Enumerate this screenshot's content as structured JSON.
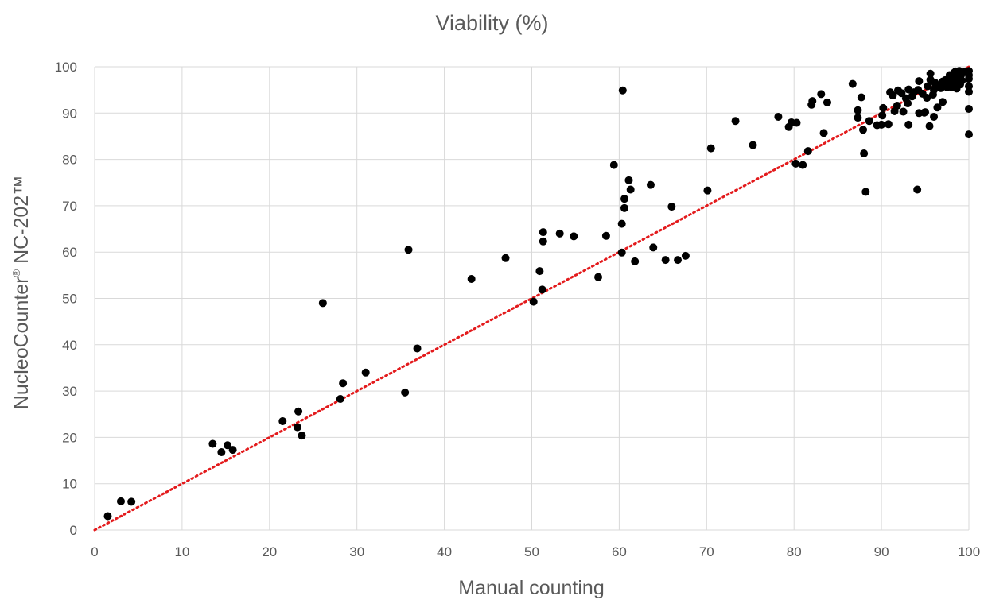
{
  "chart_data": {
    "type": "scatter",
    "title": "Viability (%)",
    "xlabel": "Manual counting",
    "ylabel_main": "NucleoCounter",
    "ylabel_sup": "®",
    "ylabel_rest": " NC-202™",
    "xlim": [
      0,
      100
    ],
    "ylim": [
      0,
      100
    ],
    "x_ticks": [
      0,
      10,
      20,
      30,
      40,
      50,
      60,
      70,
      80,
      90,
      100
    ],
    "y_ticks": [
      0,
      10,
      20,
      30,
      40,
      50,
      60,
      70,
      80,
      90,
      100
    ],
    "grid": true,
    "point_color": "#000000",
    "trendline": {
      "style": "dotted",
      "color": "#e31a1c",
      "from": [
        0,
        0
      ],
      "to": [
        100,
        100
      ]
    },
    "points": [
      [
        1.5,
        3.0
      ],
      [
        3.0,
        6.2
      ],
      [
        4.2,
        6.1
      ],
      [
        13.5,
        18.6
      ],
      [
        14.5,
        16.8
      ],
      [
        15.2,
        18.3
      ],
      [
        15.8,
        17.3
      ],
      [
        21.5,
        23.5
      ],
      [
        23.2,
        22.2
      ],
      [
        23.3,
        25.6
      ],
      [
        23.7,
        20.4
      ],
      [
        26.1,
        49.0
      ],
      [
        28.1,
        28.3
      ],
      [
        28.4,
        31.7
      ],
      [
        31.0,
        34.0
      ],
      [
        35.5,
        29.7
      ],
      [
        35.9,
        60.5
      ],
      [
        36.9,
        39.2
      ],
      [
        43.1,
        54.2
      ],
      [
        47.0,
        58.7
      ],
      [
        50.2,
        49.3
      ],
      [
        50.9,
        55.9
      ],
      [
        51.2,
        51.9
      ],
      [
        51.3,
        64.3
      ],
      [
        51.3,
        62.3
      ],
      [
        53.2,
        64.0
      ],
      [
        54.8,
        63.4
      ],
      [
        57.6,
        54.6
      ],
      [
        58.5,
        63.5
      ],
      [
        59.4,
        78.8
      ],
      [
        60.3,
        66.1
      ],
      [
        60.3,
        59.9
      ],
      [
        60.4,
        94.9
      ],
      [
        60.6,
        71.5
      ],
      [
        60.6,
        69.5
      ],
      [
        61.1,
        75.5
      ],
      [
        61.3,
        73.5
      ],
      [
        61.8,
        58.0
      ],
      [
        63.6,
        74.5
      ],
      [
        63.9,
        61.0
      ],
      [
        65.3,
        58.3
      ],
      [
        66.0,
        69.8
      ],
      [
        66.7,
        58.3
      ],
      [
        67.6,
        59.2
      ],
      [
        70.1,
        73.3
      ],
      [
        70.5,
        82.4
      ],
      [
        73.3,
        88.3
      ],
      [
        75.3,
        83.1
      ],
      [
        78.2,
        89.2
      ],
      [
        79.4,
        87.0
      ],
      [
        79.7,
        88.0
      ],
      [
        80.2,
        79.1
      ],
      [
        80.3,
        87.9
      ],
      [
        81.0,
        78.8
      ],
      [
        81.6,
        81.8
      ],
      [
        82.0,
        91.8
      ],
      [
        82.1,
        92.6
      ],
      [
        83.1,
        94.1
      ],
      [
        83.4,
        85.7
      ],
      [
        83.8,
        92.3
      ],
      [
        86.7,
        96.3
      ],
      [
        87.3,
        90.6
      ],
      [
        87.3,
        89.0
      ],
      [
        87.7,
        93.4
      ],
      [
        87.9,
        86.4
      ],
      [
        88.0,
        81.3
      ],
      [
        88.2,
        73.0
      ],
      [
        88.6,
        88.3
      ],
      [
        89.5,
        87.4
      ],
      [
        90.0,
        87.5
      ],
      [
        90.1,
        89.5
      ],
      [
        90.2,
        91.1
      ],
      [
        90.8,
        87.6
      ],
      [
        91.0,
        94.5
      ],
      [
        91.3,
        93.8
      ],
      [
        91.5,
        90.4
      ],
      [
        91.8,
        91.6
      ],
      [
        91.9,
        94.9
      ],
      [
        92.3,
        94.3
      ],
      [
        92.5,
        90.3
      ],
      [
        92.8,
        93.2
      ],
      [
        93.0,
        92.1
      ],
      [
        93.1,
        95.1
      ],
      [
        93.1,
        87.5
      ],
      [
        93.5,
        93.6
      ],
      [
        93.7,
        94.5
      ],
      [
        94.1,
        73.5
      ],
      [
        94.2,
        95.0
      ],
      [
        94.3,
        90.0
      ],
      [
        94.3,
        96.9
      ],
      [
        94.7,
        94.2
      ],
      [
        94.9,
        90.1
      ],
      [
        95.0,
        90.2
      ],
      [
        95.2,
        93.3
      ],
      [
        95.3,
        95.8
      ],
      [
        95.5,
        87.2
      ],
      [
        95.6,
        97.2
      ],
      [
        95.6,
        98.5
      ],
      [
        95.9,
        94.0
      ],
      [
        96.0,
        95.0
      ],
      [
        96.0,
        89.2
      ],
      [
        96.1,
        96.6
      ],
      [
        96.2,
        95.7
      ],
      [
        96.4,
        91.2
      ],
      [
        96.6,
        96.0
      ],
      [
        96.8,
        95.4
      ],
      [
        97.0,
        92.4
      ],
      [
        97.0,
        96.8
      ],
      [
        97.3,
        97.1
      ],
      [
        97.5,
        95.6
      ],
      [
        97.6,
        96.2
      ],
      [
        97.8,
        98.2
      ],
      [
        97.9,
        96.9
      ],
      [
        98.0,
        95.6
      ],
      [
        98.1,
        97.6
      ],
      [
        98.2,
        96.1
      ],
      [
        98.3,
        98.7
      ],
      [
        98.4,
        97.2
      ],
      [
        98.5,
        99.0
      ],
      [
        98.6,
        95.3
      ],
      [
        98.7,
        96.5
      ],
      [
        98.8,
        97.8
      ],
      [
        98.9,
        99.1
      ],
      [
        99.0,
        96.2
      ],
      [
        99.1,
        98.2
      ],
      [
        99.2,
        97.0
      ],
      [
        99.4,
        98.8
      ],
      [
        99.6,
        99.0
      ],
      [
        100.0,
        99.1
      ],
      [
        100.0,
        98.2
      ],
      [
        100.0,
        97.4
      ],
      [
        100.0,
        95.8
      ],
      [
        100.0,
        94.6
      ],
      [
        100.0,
        90.9
      ],
      [
        100.0,
        85.4
      ]
    ]
  }
}
